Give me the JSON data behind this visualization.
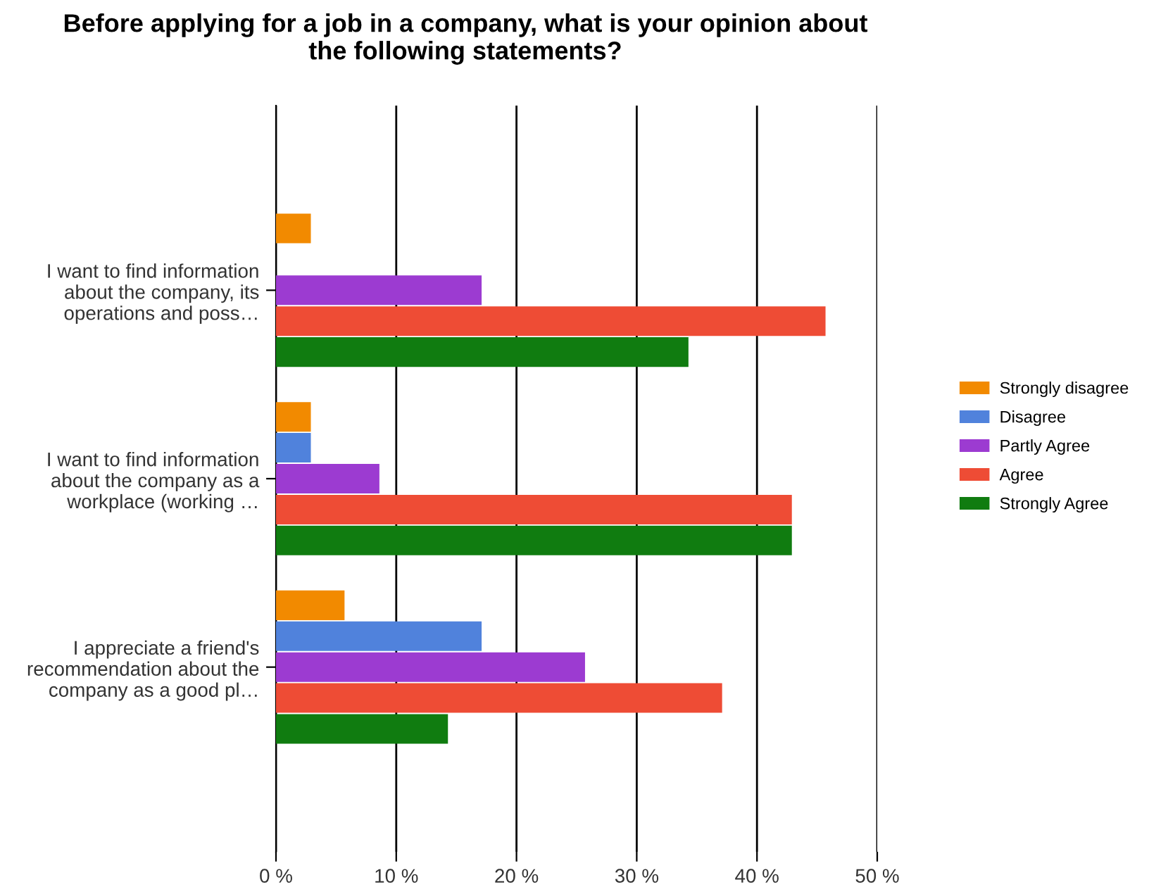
{
  "chart_data": {
    "type": "bar",
    "orientation": "horizontal",
    "title": "Before applying for a job in a company, what is your opinion about\nthe following statements?",
    "categories": [
      "I want to find information\nabout the company, its\noperations and poss…",
      "I want to find information\nabout the company as a\nworkplace (working …",
      "I appreciate a friend's\nrecommendation about the\ncompany as a good pl…"
    ],
    "series": [
      {
        "name": "Strongly disagree",
        "color": "#f28a00",
        "values": [
          2.9,
          2.9,
          5.7
        ]
      },
      {
        "name": "Disagree",
        "color": "#5082dc",
        "values": [
          0,
          2.9,
          17.1
        ]
      },
      {
        "name": "Partly Agree",
        "color": "#9c3bd1",
        "values": [
          17.1,
          8.6,
          25.7
        ]
      },
      {
        "name": "Agree",
        "color": "#ee4c35",
        "values": [
          45.7,
          42.9,
          37.1
        ]
      },
      {
        "name": "Strongly Agree",
        "color": "#107c10",
        "values": [
          34.3,
          42.9,
          14.3
        ]
      }
    ],
    "xlim": [
      0,
      50
    ],
    "xticks": [
      {
        "value": 0,
        "label": "0 %"
      },
      {
        "value": 10,
        "label": "10 %"
      },
      {
        "value": 20,
        "label": "20 %"
      },
      {
        "value": 30,
        "label": "30 %"
      },
      {
        "value": 40,
        "label": "40 %"
      },
      {
        "value": 50,
        "label": "50 %"
      }
    ],
    "grid": "x",
    "legend": "right"
  }
}
